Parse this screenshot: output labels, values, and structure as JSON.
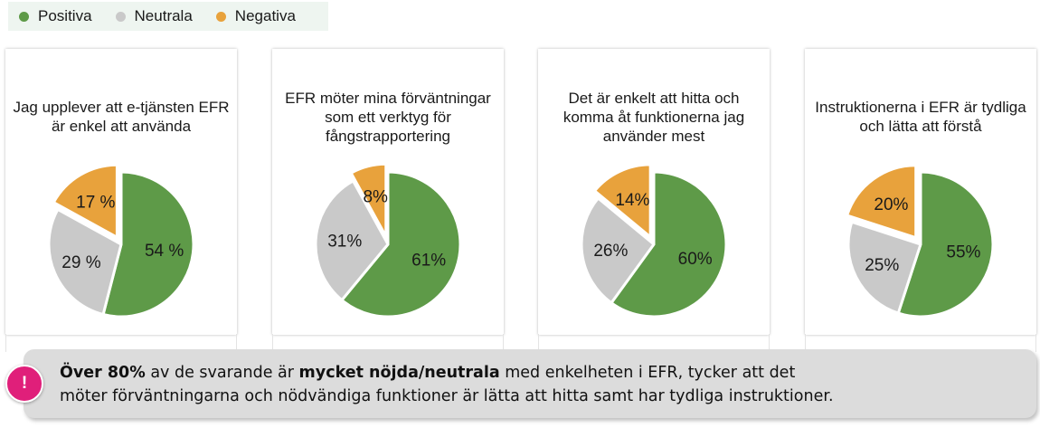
{
  "legend": {
    "items": [
      {
        "label": "Positiva",
        "color": "#5e9a48"
      },
      {
        "label": "Neutrala",
        "color": "#c9c9c9"
      },
      {
        "label": "Negativa",
        "color": "#e8a23c"
      }
    ]
  },
  "chart_data": [
    {
      "type": "pie",
      "title": "Jag upplever att e-tjänsten EFR är enkel att använda",
      "categories": [
        "Positiva",
        "Neutrala",
        "Negativa"
      ],
      "values": [
        54,
        29,
        17
      ],
      "labels": [
        "54 %",
        "29 %",
        "17 %"
      ],
      "exploded": "Negativa"
    },
    {
      "type": "pie",
      "title": "EFR möter mina förväntningar som ett verktyg för fångstrapportering",
      "categories": [
        "Positiva",
        "Neutrala",
        "Negativa"
      ],
      "values": [
        61,
        31,
        8
      ],
      "labels": [
        "61%",
        "31%",
        "8%"
      ],
      "exploded": "Negativa"
    },
    {
      "type": "pie",
      "title": "Det är enkelt att hitta och komma åt funktionerna jag använder mest",
      "categories": [
        "Positiva",
        "Neutrala",
        "Negativa"
      ],
      "values": [
        60,
        26,
        14
      ],
      "labels": [
        "60%",
        "26%",
        "14%"
      ],
      "exploded": "Negativa"
    },
    {
      "type": "pie",
      "title": "Instruktionerna i EFR är tydliga och lätta att förstå",
      "categories": [
        "Positiva",
        "Neutrala",
        "Negativa"
      ],
      "values": [
        55,
        25,
        20
      ],
      "labels": [
        "55%",
        "25%",
        "20%"
      ],
      "exploded": "Negativa"
    }
  ],
  "callout": {
    "badge": "!",
    "line1_bold1": "Över 80%",
    "line1_text1": " av de svarande är ",
    "line1_bold2": "mycket nöjda/neutrala",
    "line1_text2": " med enkelheten i EFR, tycker att det",
    "line2": "möter förväntningarna och nödvändiga funktioner är lätta att hitta samt har tydliga instruktioner."
  }
}
